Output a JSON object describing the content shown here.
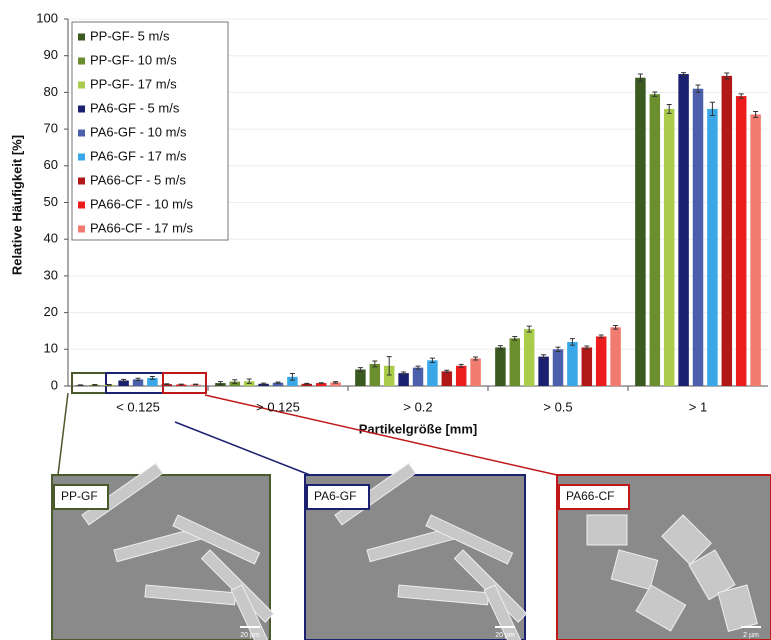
{
  "chart_data": {
    "type": "bar",
    "y_label": "Relative Häufigkeit [%]",
    "x_label": "Partikelgröße [mm]",
    "categories": [
      "< 0.125",
      "> 0.125",
      "> 0.2",
      "> 0.5",
      "> 1"
    ],
    "ylim": [
      0,
      100
    ],
    "yticks": [
      0,
      10,
      20,
      30,
      40,
      50,
      60,
      70,
      80,
      90,
      100
    ],
    "grid": true,
    "legend": "top-left",
    "series": [
      {
        "name": "PP-GF- 5 m/s",
        "color": "#3b5a20",
        "values": [
          0.2,
          0.8,
          4.5,
          10.5,
          84
        ],
        "errors": [
          0.1,
          0.4,
          0.5,
          0.5,
          1
        ]
      },
      {
        "name": "PP-GF- 10 m/s",
        "color": "#6b8e2e",
        "values": [
          0.3,
          1.2,
          6,
          13,
          79.5
        ],
        "errors": [
          0.1,
          0.5,
          0.8,
          0.5,
          0.6
        ]
      },
      {
        "name": "PP-GF- 17 m/s",
        "color": "#a9cd4b",
        "values": [
          0.3,
          1.3,
          5.5,
          15.5,
          75.5
        ],
        "errors": [
          0.1,
          0.6,
          2.5,
          0.8,
          1.2
        ]
      },
      {
        "name": "PA6-GF - 5 m/s",
        "color": "#1b2070",
        "values": [
          1.5,
          0.6,
          3.5,
          8,
          85
        ],
        "errors": [
          0.3,
          0.2,
          0.3,
          0.5,
          0.4
        ]
      },
      {
        "name": "PA6-GF - 10 m/s",
        "color": "#4a60aa",
        "values": [
          1.8,
          0.9,
          5,
          10,
          81
        ],
        "errors": [
          0.3,
          0.2,
          0.4,
          0.6,
          1
        ]
      },
      {
        "name": "PA6-GF - 17 m/s",
        "color": "#3aa8e8",
        "values": [
          2.2,
          2.5,
          7,
          12,
          75.5
        ],
        "errors": [
          0.4,
          0.9,
          0.6,
          0.9,
          1.8
        ]
      },
      {
        "name": "PA66-CF - 5 m/s",
        "color": "#b21818",
        "values": [
          0.5,
          0.6,
          4,
          10.5,
          84.5
        ],
        "errors": [
          0.1,
          0.1,
          0.3,
          0.4,
          0.8
        ]
      },
      {
        "name": "PA66-CF - 10 m/s",
        "color": "#ee1d1d",
        "values": [
          0.4,
          0.8,
          5.5,
          13.5,
          79
        ],
        "errors": [
          0.1,
          0.1,
          0.4,
          0.4,
          0.6
        ]
      },
      {
        "name": "PA66-CF - 17 m/s",
        "color": "#f27b6f",
        "values": [
          0.4,
          1,
          7.5,
          16,
          74
        ],
        "errors": [
          0.1,
          0.2,
          0.4,
          0.5,
          0.8
        ]
      }
    ]
  },
  "insets": [
    {
      "label": "PP-GF",
      "scale": "20 µm",
      "color": "#4b5a2c"
    },
    {
      "label": "PA6-GF",
      "scale": "20 µm",
      "color": "#1b2070"
    },
    {
      "label": "PA66-CF",
      "scale": "2 µm",
      "color": "#c01818"
    }
  ]
}
